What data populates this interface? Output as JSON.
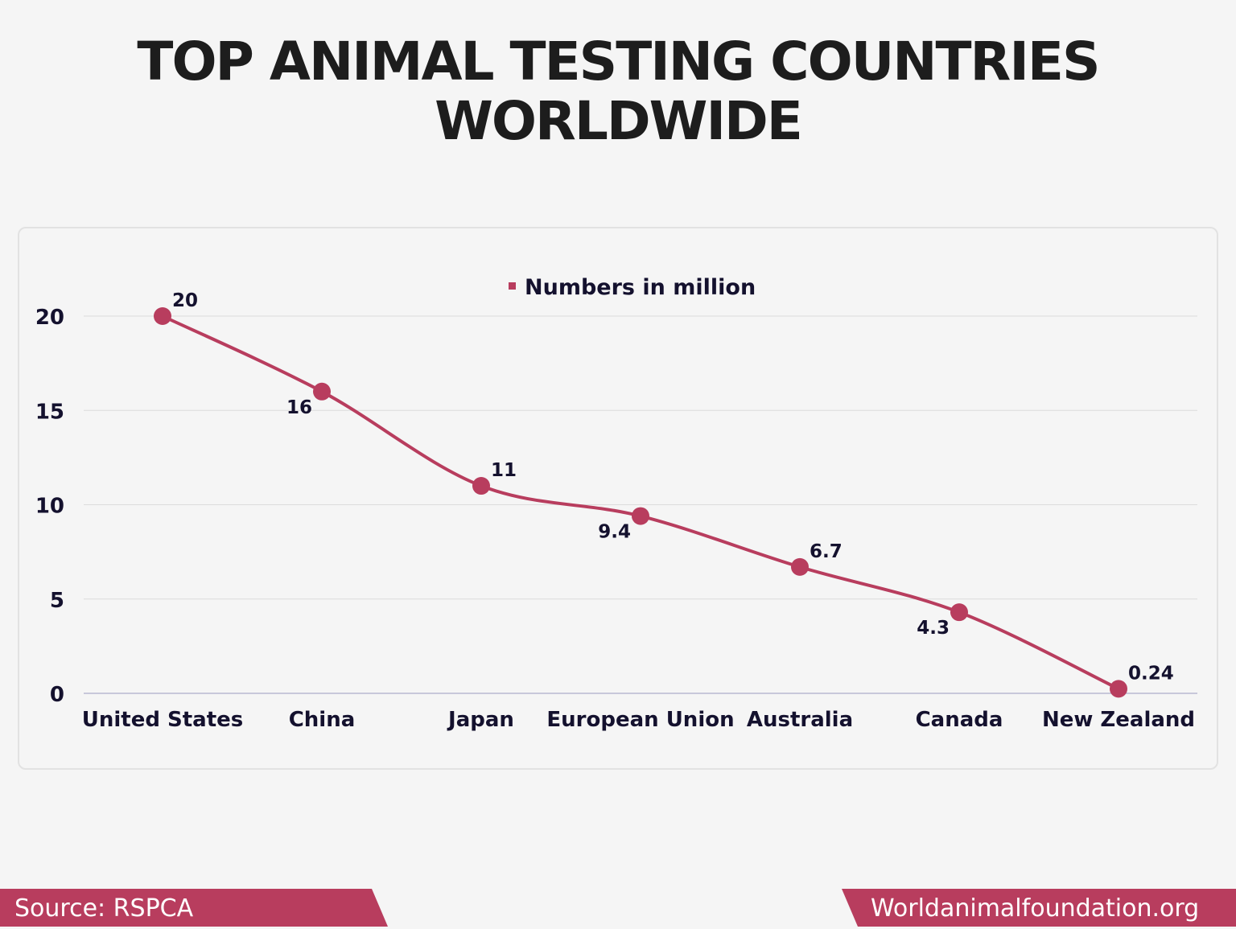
{
  "chart_data": {
    "type": "line",
    "title": "TOP ANIMAL TESTING COUNTRIES WORLDWIDE",
    "categories": [
      "United States",
      "China",
      "Japan",
      "European Union",
      "Australia",
      "Canada",
      "New Zealand"
    ],
    "series": [
      {
        "name": "Numbers in million",
        "values": [
          20,
          16,
          11,
          9.4,
          6.7,
          4.3,
          0.24
        ],
        "labels": [
          "20",
          "16",
          "11",
          "9.4",
          "6.7",
          "4.3",
          "0.24"
        ]
      }
    ],
    "yticks": [
      "0",
      "5",
      "10",
      "15",
      "20"
    ],
    "ylim": [
      0,
      20
    ],
    "grid": true,
    "legend": "top-center",
    "colors": {
      "line": "#b83d5e",
      "text": "#14112e",
      "grid": "#dcdcdc",
      "axis": "#9c9cc0"
    }
  },
  "footer": {
    "source": "Source: RSPCA",
    "site": "Worldanimalfoundation.org"
  }
}
